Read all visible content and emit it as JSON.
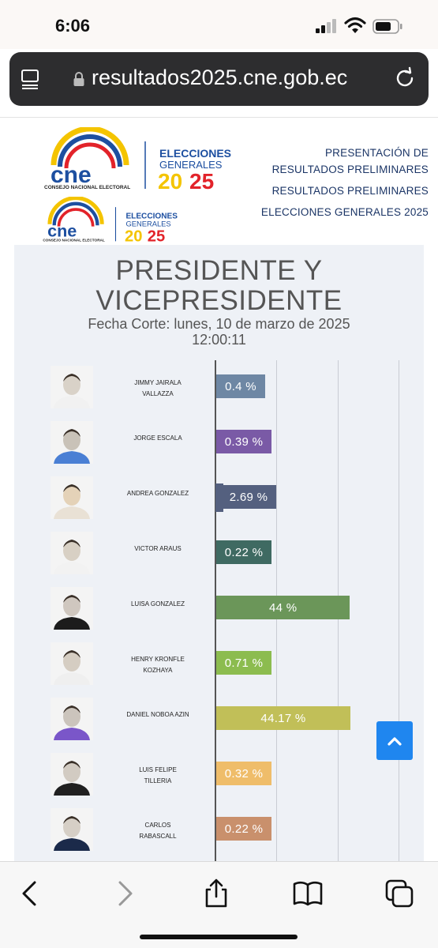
{
  "status_bar": {
    "time": "6:06"
  },
  "browser": {
    "url": "resultados2025.cne.gob.ec"
  },
  "header": {
    "logo": {
      "brand": "cne",
      "subtitle": "CONSEJO NACIONAL ELECTORAL",
      "elections_line1": "ELECCIONES",
      "elections_line2": "GENERALES",
      "year": "2025"
    },
    "nav": [
      "PRESENTACIÓN DE RESULTADOS PRELIMINARES",
      "RESULTADOS PRELIMINARES",
      "ELECCIONES GENERALES 2025"
    ]
  },
  "results": {
    "title_line1": "PRESIDENTE Y",
    "title_line2": "VICEPRESIDENTE",
    "cut_line1": "Fecha Corte: lunes, 10 de marzo de 2025",
    "cut_line2": "12:00:11",
    "candidates": [
      {
        "name_line1": "JIMMY JAIRALA",
        "name_line2": "VALLAZZA",
        "value": 0.4,
        "label": "0.4 %",
        "color": "#6e87a4"
      },
      {
        "name_line1": "JORGE ESCALA",
        "name_line2": "",
        "value": 0.39,
        "label": "0.39 %",
        "color": "#7a5aa6"
      },
      {
        "name_line1": "ANDREA GONZALEZ",
        "name_line2": "",
        "value": 2.69,
        "label": "2.69 %",
        "color": "#54607f"
      },
      {
        "name_line1": "VICTOR ARAUS",
        "name_line2": "",
        "value": 0.22,
        "label": "0.22 %",
        "color": "#3f6a62"
      },
      {
        "name_line1": "LUISA GONZALEZ",
        "name_line2": "",
        "value": 44,
        "label": "44 %",
        "color": "#6b9659"
      },
      {
        "name_line1": "HENRY KRONFLE",
        "name_line2": "KOZHAYA",
        "value": 0.71,
        "label": "0.71 %",
        "color": "#8cbc4f"
      },
      {
        "name_line1": "DANIEL NOBOA AZIN",
        "name_line2": "",
        "value": 44.17,
        "label": "44.17 %",
        "color": "#c1bf58"
      },
      {
        "name_line1": "LUIS FELIPE",
        "name_line2": "TILLERIA",
        "value": 0.32,
        "label": "0.32 %",
        "color": "#efbd6a"
      },
      {
        "name_line1": "CARLOS",
        "name_line2": "RABASCALL",
        "value": 0.22,
        "label": "0.22 %",
        "color": "#c9906c"
      }
    ]
  },
  "colors": {
    "nav_text": "#1b3566",
    "panel_bg": "#eef1f6",
    "scroll_button": "#1f86ef"
  },
  "icons": [
    "reader-icon",
    "lock-icon",
    "reload-icon",
    "back-icon",
    "forward-icon",
    "share-icon",
    "bookmarks-icon",
    "tabs-icon",
    "chevron-up-icon"
  ]
}
